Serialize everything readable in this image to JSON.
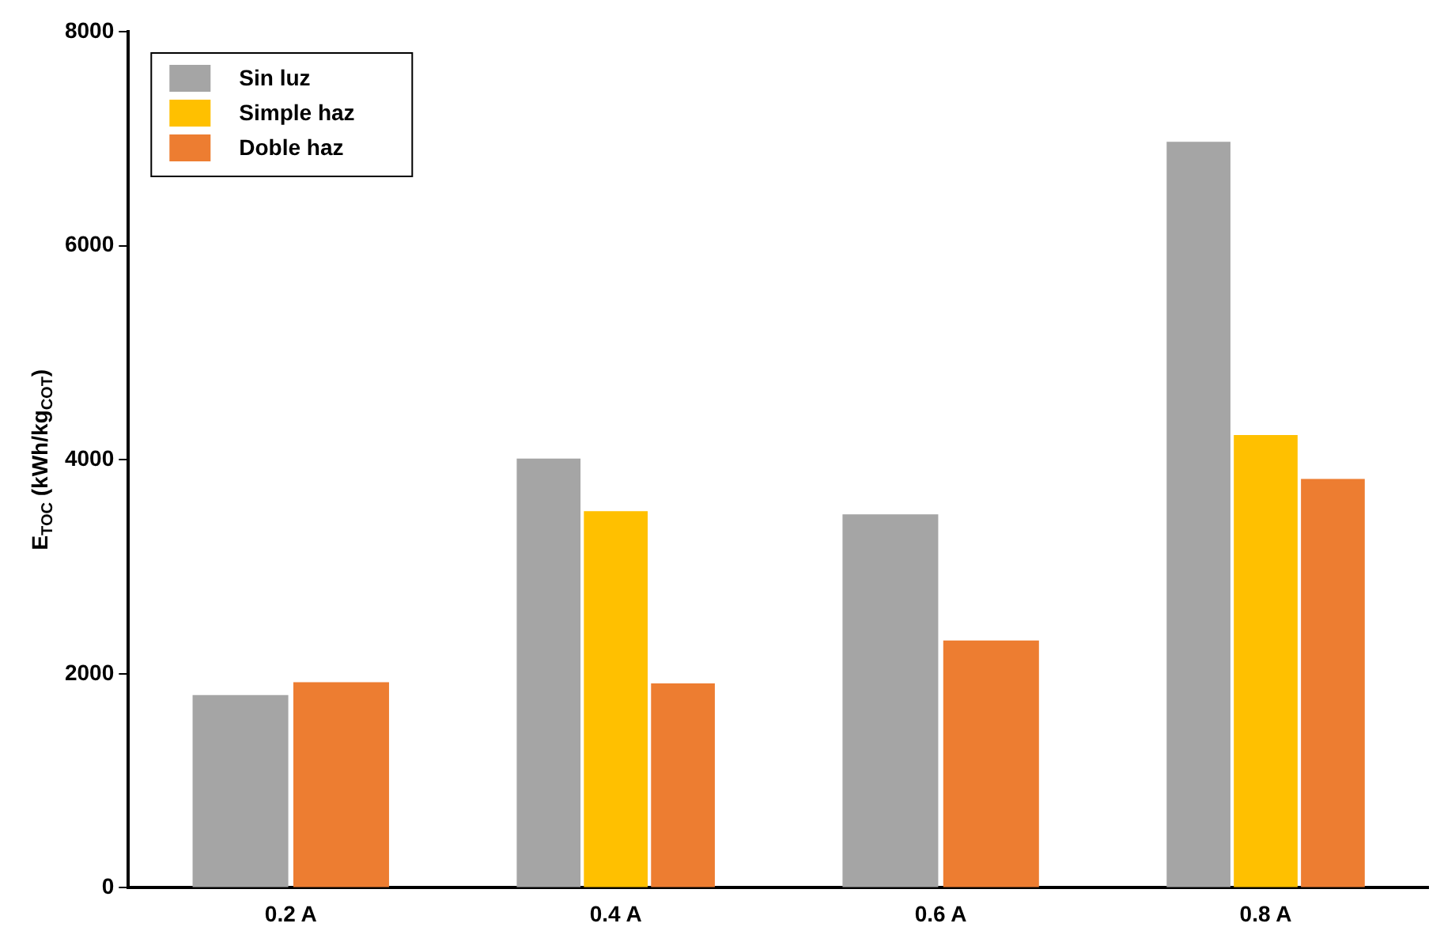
{
  "chart_data": {
    "type": "bar",
    "ylabel": "E$_{TOC}$ (kWh/kg$_{COT}$)",
    "categories": [
      "0.2 A",
      "0.4 A",
      "0.6 A",
      "0.8 A"
    ],
    "series": [
      {
        "name": "Sin luz",
        "color": "#a5a5a5",
        "values": [
          1800,
          4010,
          3490,
          6970
        ]
      },
      {
        "name": "Simple haz",
        "color": "#ffc000",
        "values": [
          null,
          3520,
          null,
          4230
        ]
      },
      {
        "name": "Doble haz",
        "color": "#ed7d31",
        "values": [
          1920,
          1910,
          2310,
          3820
        ]
      }
    ],
    "ylim": [
      0,
      8000
    ],
    "yticks": [
      0,
      2000,
      4000,
      6000,
      8000
    ],
    "grid": false,
    "legend": "top left"
  }
}
